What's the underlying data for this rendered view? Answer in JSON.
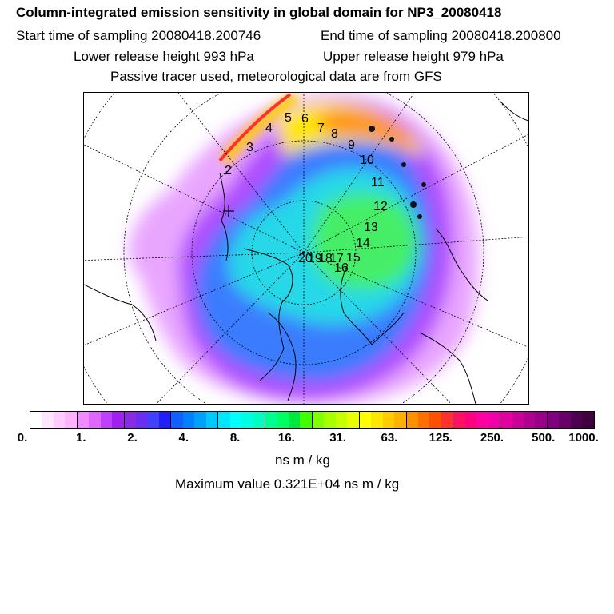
{
  "title": "Column-integrated emission sensitivity in global domain for NP3_20080418",
  "sampling": {
    "start_text": "Start time of sampling 20080418.200746",
    "end_text": "End time of sampling 20080418.200800"
  },
  "release": {
    "lower_text": "Lower release height  993 hPa",
    "upper_text": "Upper release height  979 hPa"
  },
  "tracer_text": "Passive tracer used, meteorological data are from GFS",
  "map": {
    "trajectory_labels": [
      "2",
      "3",
      "4",
      "5",
      "6",
      "7",
      "8",
      "9",
      "10",
      "11",
      "12",
      "13",
      "14",
      "15",
      "16",
      "17",
      "18",
      "19",
      "20"
    ]
  },
  "colorbar": {
    "tick_labels": [
      "0.",
      "1.",
      "2.",
      "4.",
      "8.",
      "16.",
      "31.",
      "63.",
      "125.",
      "250.",
      "500.",
      "1000."
    ],
    "colors": [
      "#ffffff",
      "#ffe6ff",
      "#ffccff",
      "#ffb3ff",
      "#f08cff",
      "#e066ff",
      "#c040ff",
      "#a020f0",
      "#8a2be2",
      "#6a2ef0",
      "#4040ff",
      "#2020ff",
      "#1060ff",
      "#0080ff",
      "#00a0ff",
      "#00c8ff",
      "#00e8ff",
      "#00ffff",
      "#00ffe0",
      "#00ffc0",
      "#00ff90",
      "#00ff60",
      "#00e840",
      "#40ff00",
      "#80ff00",
      "#a8ff00",
      "#c8ff00",
      "#e8ff00",
      "#ffff00",
      "#ffe600",
      "#ffcc00",
      "#ffb000",
      "#ff9000",
      "#ff7000",
      "#ff5000",
      "#ff3030",
      "#ff1060",
      "#ff0080",
      "#ff00a0",
      "#f000a8",
      "#e000a0",
      "#c80098",
      "#b00090",
      "#980088",
      "#800080",
      "#680068",
      "#500050",
      "#400040"
    ],
    "units": "ns m / kg",
    "max_text": "Maximum value  0.321E+04 ns m / kg"
  }
}
